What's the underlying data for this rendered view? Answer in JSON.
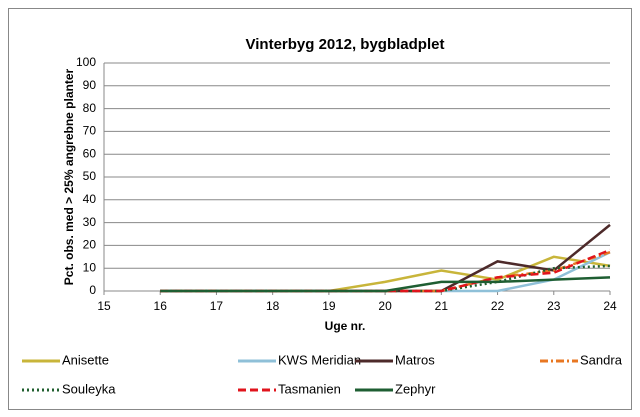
{
  "chart_data": {
    "type": "line",
    "title": "Vinterbyg 2012, bygbladplet",
    "x_label": "Uge nr.",
    "y_label": "Pct. obs. med > 25% angrebne planter",
    "x": [
      16,
      17,
      18,
      19,
      20,
      21,
      22,
      23,
      24
    ],
    "xlim": [
      15,
      24
    ],
    "xticks": [
      15,
      16,
      17,
      18,
      19,
      20,
      21,
      22,
      23,
      24
    ],
    "ylim": [
      0,
      100
    ],
    "yticks": [
      0,
      10,
      20,
      30,
      40,
      50,
      60,
      70,
      80,
      90,
      100
    ],
    "grid": true,
    "legend": "bottom",
    "series": [
      {
        "name": "Anisette",
        "color": "#c8b53a",
        "dash": "solid",
        "values": [
          0,
          0,
          0,
          0,
          4,
          9,
          5,
          15,
          11
        ]
      },
      {
        "name": "KWS Meridian",
        "color": "#8fc0d8",
        "dash": "solid",
        "values": [
          0,
          0,
          0,
          0,
          0,
          0,
          0,
          5,
          17
        ]
      },
      {
        "name": "Matros",
        "color": "#4d2a2a",
        "dash": "solid",
        "values": [
          0,
          0,
          0,
          0,
          0,
          0,
          13,
          9,
          29
        ]
      },
      {
        "name": "Sandra",
        "color": "#e87722",
        "dash": "dashdot",
        "values": [
          0,
          0,
          0,
          0,
          0,
          0,
          6,
          9,
          17
        ]
      },
      {
        "name": "Souleyka",
        "color": "#1f5e2e",
        "dash": "dotted",
        "values": [
          0,
          0,
          0,
          0,
          0,
          0,
          4,
          10,
          11
        ]
      },
      {
        "name": "Tasmanien",
        "color": "#e0141c",
        "dash": "dashed",
        "values": [
          0,
          0,
          0,
          0,
          0,
          0,
          6,
          8,
          18
        ]
      },
      {
        "name": "Zephyr",
        "color": "#1e5e32",
        "dash": "solid",
        "values": [
          0,
          0,
          0,
          0,
          0,
          4,
          4,
          5,
          6
        ]
      }
    ]
  }
}
